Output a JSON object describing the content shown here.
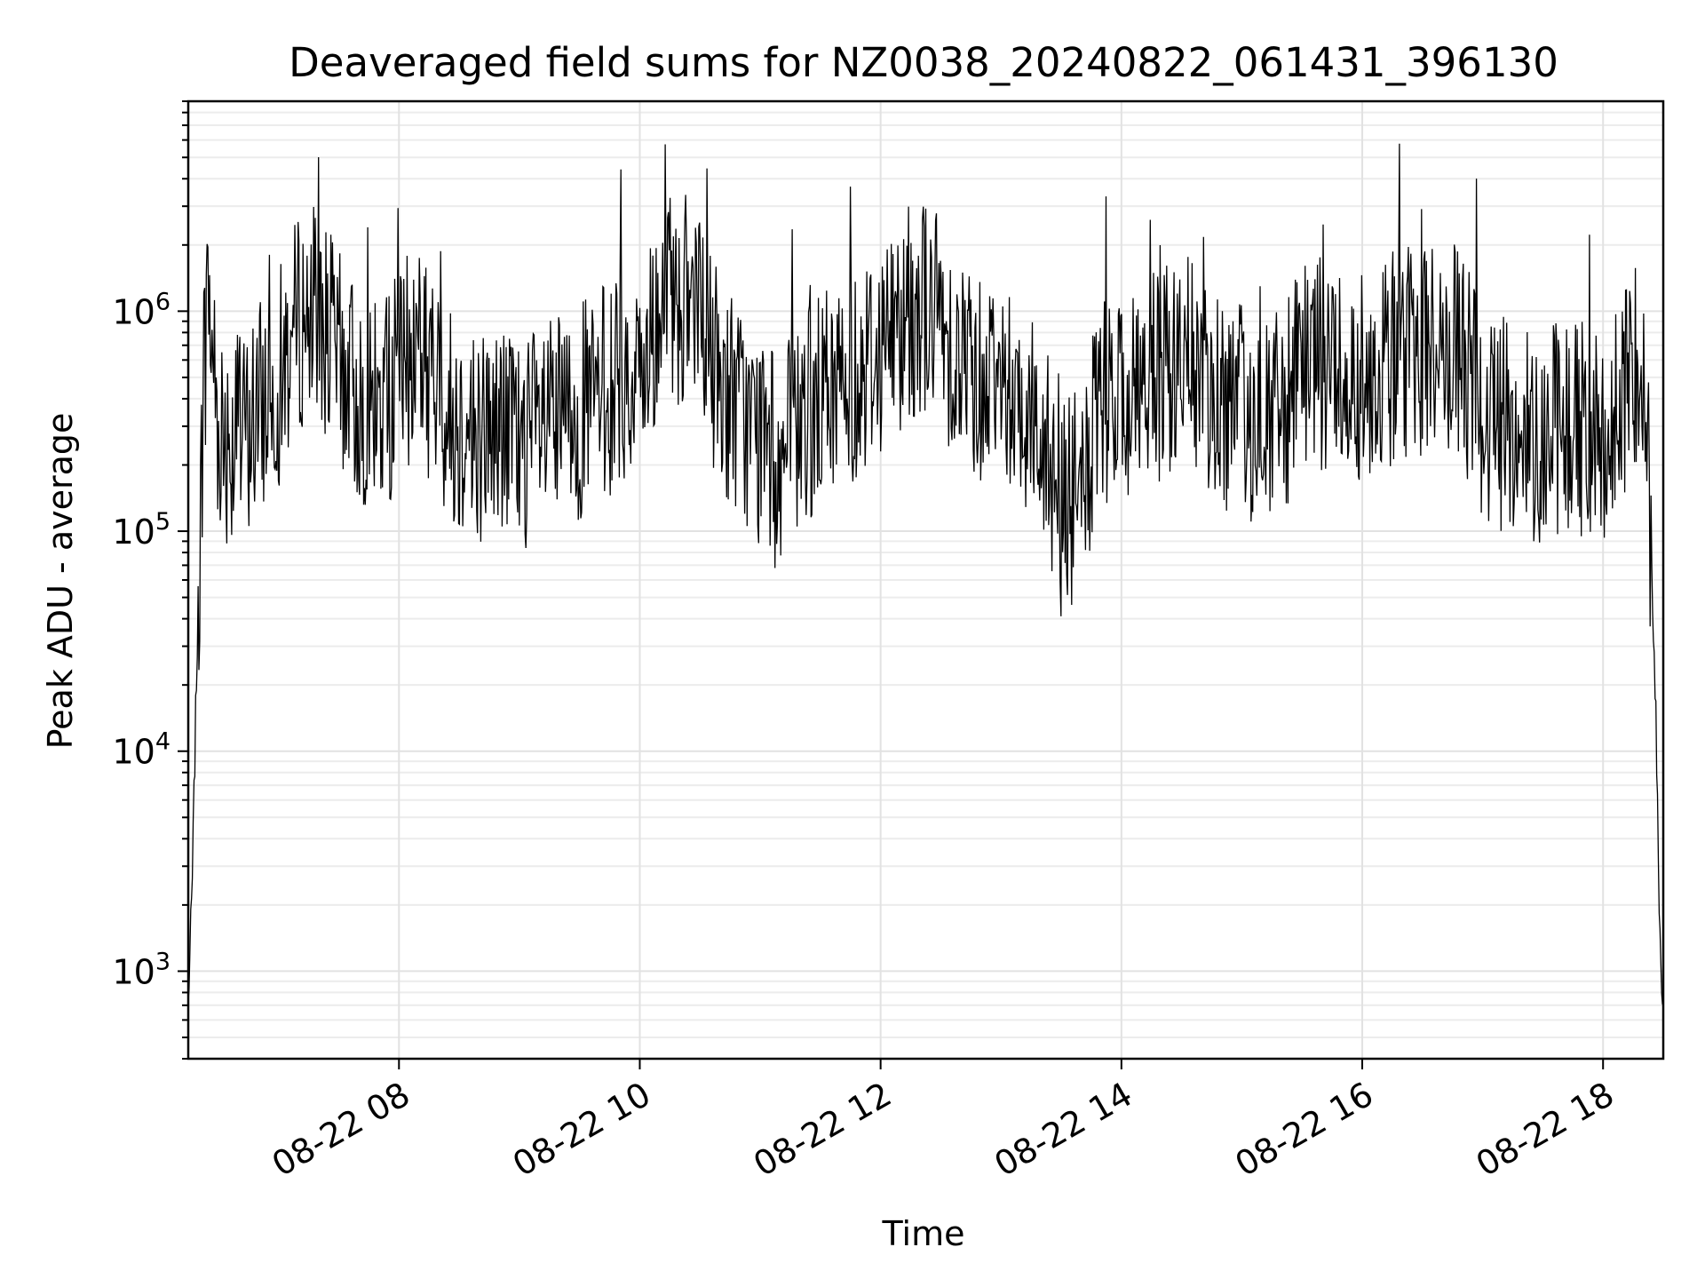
{
  "chart_data": {
    "type": "line",
    "title": "Deaveraged field sums for NZ0038_20240822_061431_396130",
    "xlabel": "Time",
    "ylabel": "Peak ADU - average",
    "yscale": "log",
    "grid": true,
    "x_range": [
      "2024-08-22 06:15",
      "2024-08-22 18:30"
    ],
    "ylim": [
      400,
      9000000
    ],
    "x_ticks": [
      {
        "value": "2024-08-22 08:00",
        "label": "08-22 08"
      },
      {
        "value": "2024-08-22 10:00",
        "label": "08-22 10"
      },
      {
        "value": "2024-08-22 12:00",
        "label": "08-22 12"
      },
      {
        "value": "2024-08-22 14:00",
        "label": "08-22 14"
      },
      {
        "value": "2024-08-22 16:00",
        "label": "08-22 16"
      },
      {
        "value": "2024-08-22 18:00",
        "label": "08-22 18"
      }
    ],
    "y_ticks": [
      {
        "value": 1000,
        "base": "10",
        "exp": "3"
      },
      {
        "value": 10000,
        "base": "10",
        "exp": "4"
      },
      {
        "value": 100000,
        "base": "10",
        "exp": "5"
      },
      {
        "value": 1000000,
        "base": "10",
        "exp": "6"
      }
    ],
    "series": [
      {
        "color": "#000000",
        "x": [
          "2024-08-22 06:15",
          "2024-08-22 06:17",
          "2024-08-22 06:19",
          "2024-08-22 06:21",
          "2024-08-22 06:23",
          "2024-08-22 06:25",
          "2024-08-22 06:30",
          "2024-08-22 06:40",
          "2024-08-22 06:50",
          "2024-08-22 07:00",
          "2024-08-22 07:10",
          "2024-08-22 07:20",
          "2024-08-22 07:30",
          "2024-08-22 07:40",
          "2024-08-22 07:50",
          "2024-08-22 08:00",
          "2024-08-22 08:10",
          "2024-08-22 08:20",
          "2024-08-22 08:30",
          "2024-08-22 08:40",
          "2024-08-22 08:50",
          "2024-08-22 09:00",
          "2024-08-22 09:10",
          "2024-08-22 09:20",
          "2024-08-22 09:30",
          "2024-08-22 09:40",
          "2024-08-22 09:50",
          "2024-08-22 10:00",
          "2024-08-22 10:10",
          "2024-08-22 10:20",
          "2024-08-22 10:30",
          "2024-08-22 10:40",
          "2024-08-22 10:50",
          "2024-08-22 11:00",
          "2024-08-22 11:10",
          "2024-08-22 11:20",
          "2024-08-22 11:30",
          "2024-08-22 11:40",
          "2024-08-22 11:50",
          "2024-08-22 12:00",
          "2024-08-22 12:10",
          "2024-08-22 12:20",
          "2024-08-22 12:30",
          "2024-08-22 12:40",
          "2024-08-22 12:50",
          "2024-08-22 13:00",
          "2024-08-22 13:10",
          "2024-08-22 13:20",
          "2024-08-22 13:30",
          "2024-08-22 13:40",
          "2024-08-22 13:50",
          "2024-08-22 14:00",
          "2024-08-22 14:10",
          "2024-08-22 14:20",
          "2024-08-22 14:30",
          "2024-08-22 14:40",
          "2024-08-22 14:50",
          "2024-08-22 15:00",
          "2024-08-22 15:10",
          "2024-08-22 15:20",
          "2024-08-22 15:30",
          "2024-08-22 15:40",
          "2024-08-22 15:50",
          "2024-08-22 16:00",
          "2024-08-22 16:10",
          "2024-08-22 16:20",
          "2024-08-22 16:30",
          "2024-08-22 16:40",
          "2024-08-22 16:50",
          "2024-08-22 17:00",
          "2024-08-22 17:10",
          "2024-08-22 17:20",
          "2024-08-22 17:30",
          "2024-08-22 17:40",
          "2024-08-22 17:50",
          "2024-08-22 18:00",
          "2024-08-22 18:10",
          "2024-08-22 18:15",
          "2024-08-22 18:20",
          "2024-08-22 18:23",
          "2024-08-22 18:26",
          "2024-08-22 18:28",
          "2024-08-22 18:30"
        ],
        "values": [
          700,
          2500,
          20000,
          120000,
          600000,
          1200000,
          300000,
          250000,
          350000,
          500000,
          900000,
          1000000,
          600000,
          400000,
          350000,
          500000,
          700000,
          400000,
          300000,
          280000,
          300000,
          250000,
          280000,
          300000,
          350000,
          400000,
          500000,
          500000,
          900000,
          1200000,
          800000,
          500000,
          350000,
          250000,
          200000,
          300000,
          400000,
          450000,
          550000,
          700000,
          900000,
          1100000,
          900000,
          600000,
          500000,
          500000,
          400000,
          300000,
          120000,
          150000,
          350000,
          400000,
          450000,
          500000,
          600000,
          500000,
          400000,
          350000,
          300000,
          350000,
          500000,
          600000,
          550000,
          500000,
          600000,
          650000,
          700000,
          700000,
          600000,
          350000,
          300000,
          280000,
          280000,
          300000,
          300000,
          280000,
          350000,
          600000,
          700000,
          150000,
          20000,
          2000,
          600
        ]
      }
    ]
  }
}
